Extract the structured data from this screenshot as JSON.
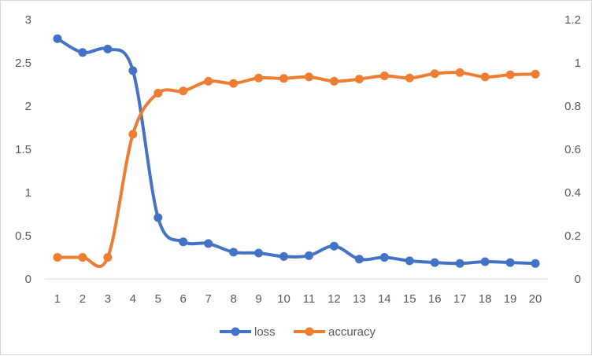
{
  "chart_data": {
    "type": "line",
    "categories": [
      "1",
      "2",
      "3",
      "4",
      "5",
      "6",
      "7",
      "8",
      "9",
      "10",
      "11",
      "12",
      "13",
      "14",
      "15",
      "16",
      "17",
      "18",
      "19",
      "20"
    ],
    "series": [
      {
        "name": "loss",
        "axis": "left",
        "color": "#4472C4",
        "values": [
          2.78,
          2.62,
          2.66,
          2.41,
          0.71,
          0.43,
          0.41,
          0.31,
          0.3,
          0.26,
          0.27,
          0.38,
          0.23,
          0.25,
          0.21,
          0.19,
          0.18,
          0.2,
          0.19,
          0.18
        ]
      },
      {
        "name": "accuracy",
        "axis": "right",
        "color": "#ED7D31",
        "values": [
          0.1,
          0.1,
          0.1,
          0.67,
          0.86,
          0.87,
          0.915,
          0.905,
          0.93,
          0.928,
          0.935,
          0.915,
          0.925,
          0.94,
          0.93,
          0.95,
          0.955,
          0.935,
          0.945,
          0.948
        ]
      }
    ],
    "y_left": {
      "min": 0,
      "max": 3,
      "ticks": [
        "0",
        "0.5",
        "1",
        "1.5",
        "2",
        "2.5",
        "3"
      ]
    },
    "y_right": {
      "min": 0,
      "max": 1.2,
      "ticks": [
        "0",
        "0.2",
        "0.4",
        "0.6",
        "0.8",
        "1",
        "1.2"
      ]
    },
    "title": "",
    "xlabel": "",
    "ylabel": "",
    "grid": false,
    "legend_position": "bottom",
    "axis_line_color": "#d9d9d9"
  }
}
